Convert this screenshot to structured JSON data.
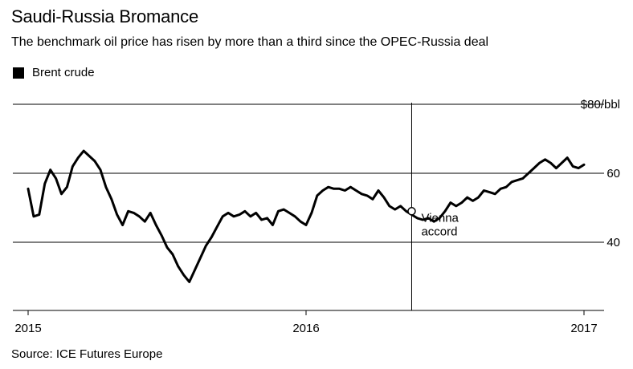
{
  "title": "Saudi-Russia Bromance",
  "subtitle": "The benchmark oil price has risen by more than a third since the OPEC-Russia deal",
  "legend": {
    "label": "Brent crude",
    "color": "#000000"
  },
  "source": "Source: ICE Futures Europe",
  "chart_data": {
    "type": "line",
    "xlim": [
      2015.0,
      2017.0
    ],
    "ylim": [
      25,
      80
    ],
    "grid": true,
    "y_ticks": [
      {
        "value": 80,
        "label": "$80/bbl"
      },
      {
        "value": 60,
        "label": "60"
      },
      {
        "value": 40,
        "label": "40"
      }
    ],
    "x_ticks": [
      {
        "value": 2015.0,
        "label": "2015"
      },
      {
        "value": 2016.0,
        "label": "2016"
      },
      {
        "value": 2017.0,
        "label": "2017"
      }
    ],
    "annotation": {
      "x": 2016.38,
      "y": 49,
      "lines": [
        "Vienna",
        "accord"
      ]
    },
    "series": [
      {
        "name": "Brent crude",
        "color": "#000000",
        "x": [
          2015.0,
          2015.02,
          2015.04,
          2015.06,
          2015.08,
          2015.1,
          2015.12,
          2015.14,
          2015.16,
          2015.18,
          2015.2,
          2015.22,
          2015.24,
          2015.26,
          2015.28,
          2015.3,
          2015.32,
          2015.34,
          2015.36,
          2015.38,
          2015.4,
          2015.42,
          2015.44,
          2015.46,
          2015.48,
          2015.5,
          2015.52,
          2015.54,
          2015.56,
          2015.58,
          2015.6,
          2015.62,
          2015.64,
          2015.66,
          2015.68,
          2015.7,
          2015.72,
          2015.74,
          2015.76,
          2015.78,
          2015.8,
          2015.82,
          2015.84,
          2015.86,
          2015.88,
          2015.9,
          2015.92,
          2015.94,
          2015.96,
          2015.98,
          2016.0,
          2016.02,
          2016.04,
          2016.06,
          2016.08,
          2016.1,
          2016.12,
          2016.14,
          2016.16,
          2016.18,
          2016.2,
          2016.22,
          2016.24,
          2016.26,
          2016.28,
          2016.3,
          2016.32,
          2016.34,
          2016.36,
          2016.38,
          2016.4,
          2016.42,
          2016.44,
          2016.46,
          2016.48,
          2016.5,
          2016.52,
          2016.54,
          2016.56,
          2016.58,
          2016.6,
          2016.62,
          2016.64,
          2016.66,
          2016.68,
          2016.7,
          2016.72,
          2016.74,
          2016.76,
          2016.78,
          2016.8,
          2016.82,
          2016.84,
          2016.86,
          2016.88,
          2016.9,
          2016.92,
          2016.94,
          2016.96,
          2016.98,
          2017.0
        ],
        "y": [
          55.5,
          47.5,
          48.0,
          57.0,
          61.0,
          58.5,
          54.0,
          56.0,
          62.0,
          64.5,
          66.5,
          65.0,
          63.5,
          61.0,
          56.0,
          52.5,
          48.0,
          45.0,
          49.0,
          48.5,
          47.5,
          46.0,
          48.5,
          45.0,
          42.0,
          38.5,
          36.5,
          33.0,
          30.5,
          28.5,
          32.0,
          35.5,
          39.0,
          41.5,
          44.5,
          47.5,
          48.5,
          47.5,
          48.0,
          49.0,
          47.5,
          48.5,
          46.5,
          47.0,
          45.0,
          49.0,
          49.5,
          48.5,
          47.5,
          46.0,
          45.0,
          48.5,
          53.5,
          55.0,
          56.0,
          55.5,
          55.5,
          55.0,
          56.0,
          55.0,
          54.0,
          53.5,
          52.5,
          55.0,
          53.0,
          50.5,
          49.5,
          50.5,
          49.0,
          48.0,
          47.0,
          46.5,
          47.0,
          46.0,
          47.0,
          49.0,
          51.5,
          50.5,
          51.5,
          53.0,
          52.0,
          53.0,
          55.0,
          54.5,
          54.0,
          55.5,
          56.0,
          57.5,
          58.0,
          58.5,
          60.0,
          61.5,
          63.0,
          64.0,
          63.0,
          61.5,
          63.0,
          64.5,
          62.0,
          61.5,
          62.5
        ]
      }
    ]
  }
}
